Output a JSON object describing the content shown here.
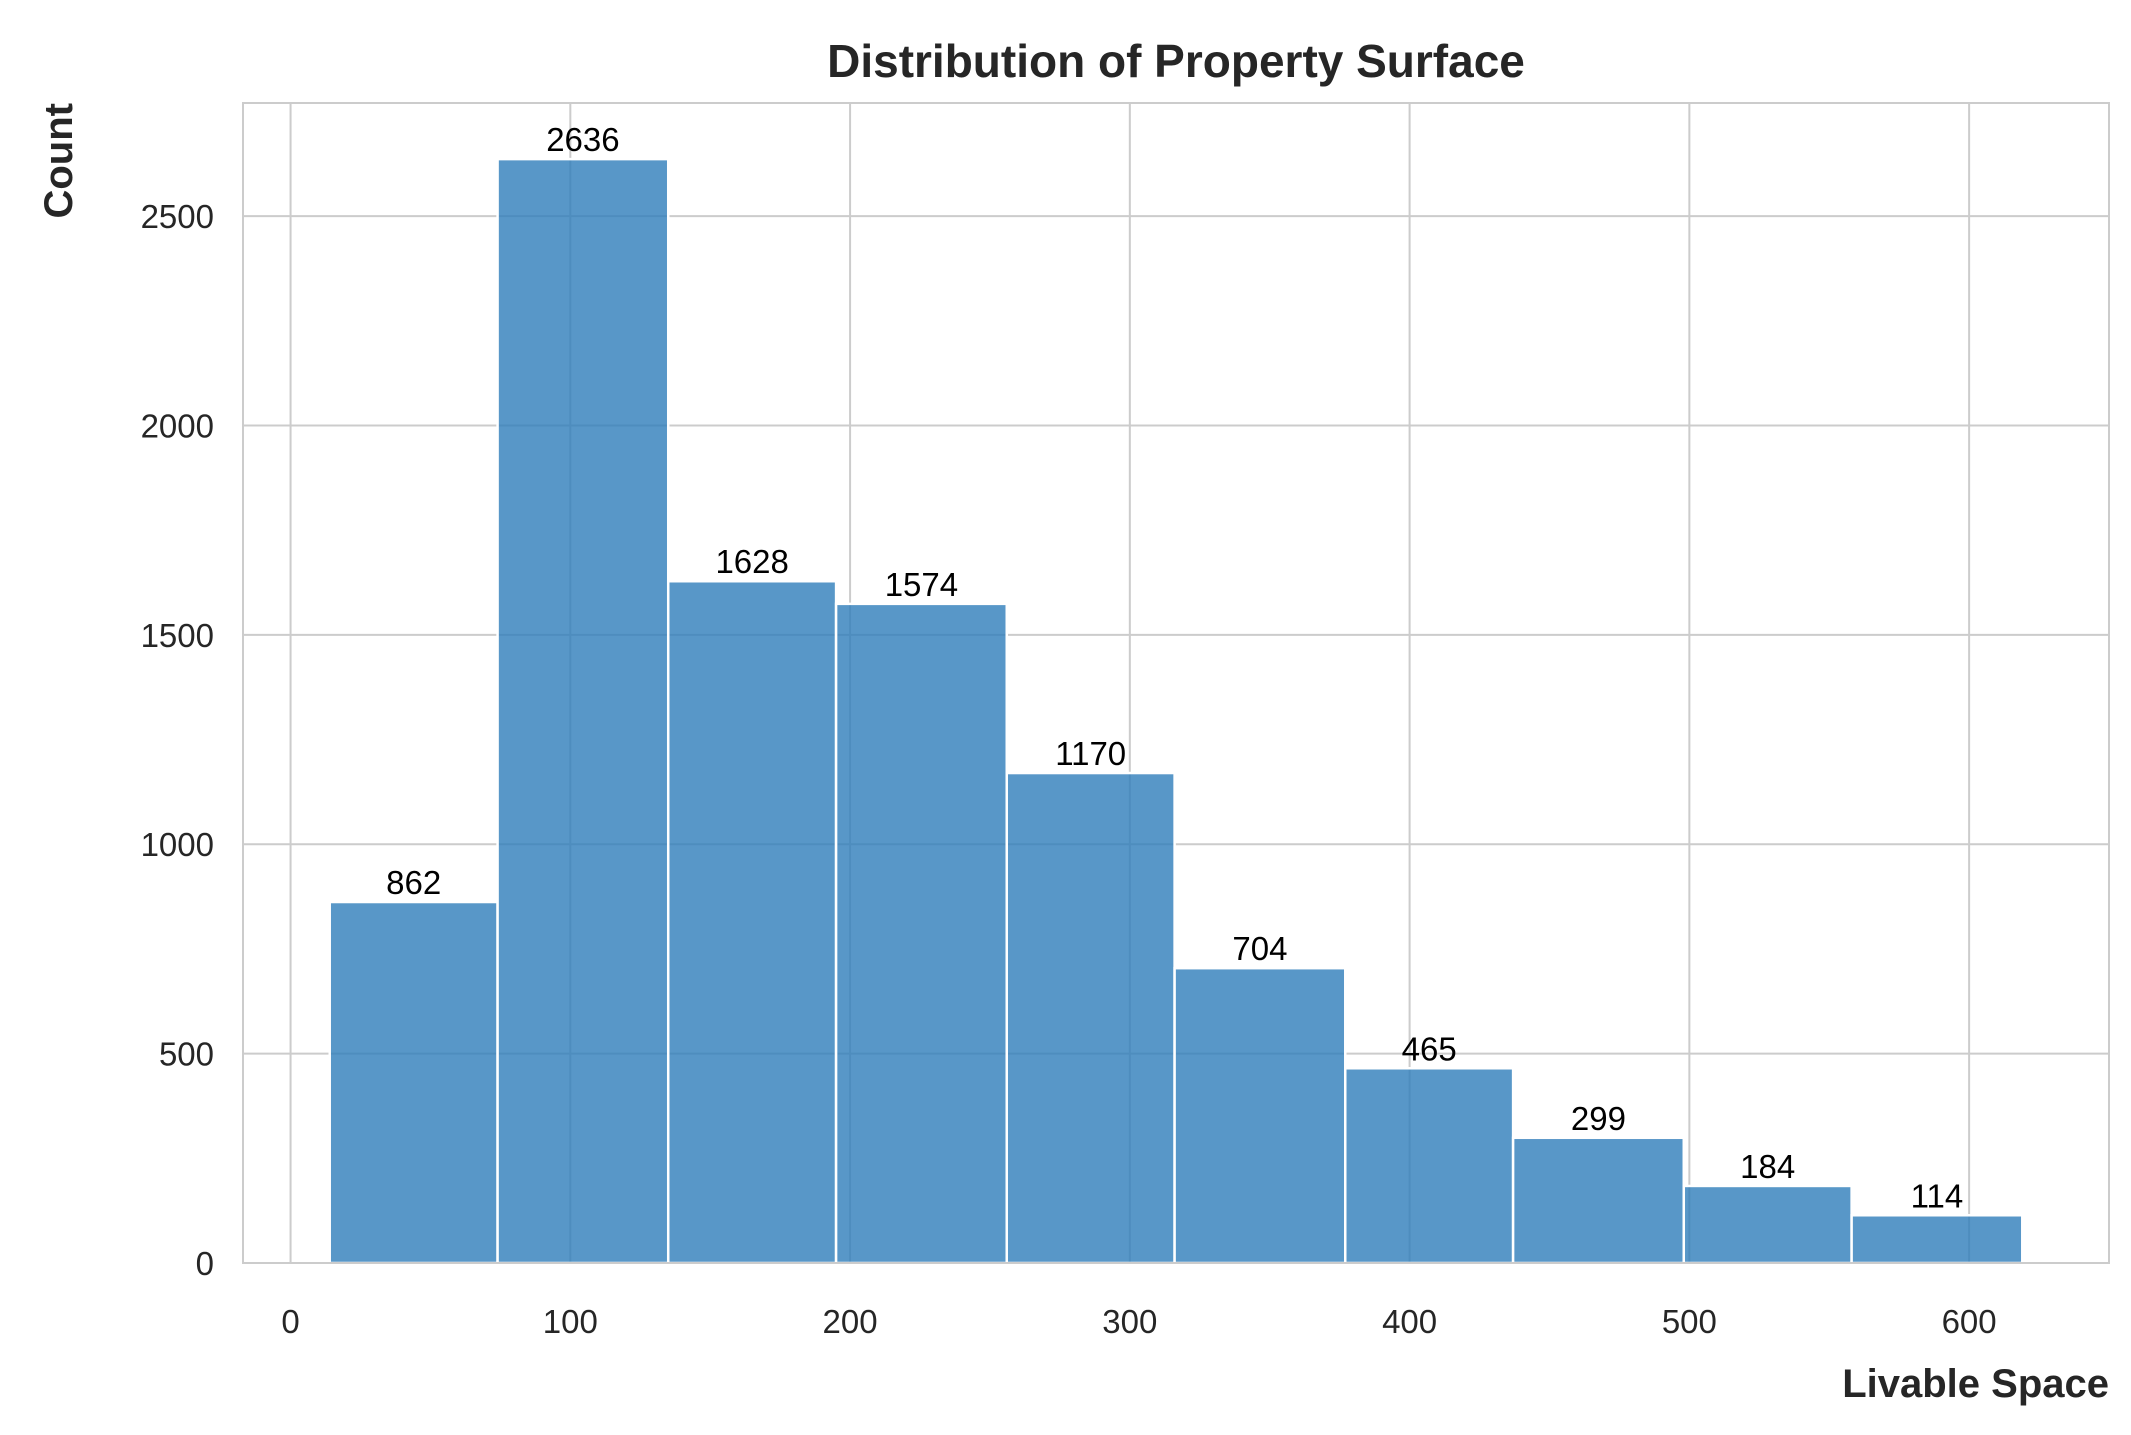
{
  "chart_data": {
    "type": "bar",
    "subtype": "histogram",
    "title": "Distribution of Property Surface",
    "xlabel": "Livable Space",
    "ylabel": "Count",
    "bins": [
      {
        "x0": 14,
        "x1": 74,
        "count": 862
      },
      {
        "x0": 74,
        "x1": 135,
        "count": 2636
      },
      {
        "x0": 135,
        "x1": 195,
        "count": 1628
      },
      {
        "x0": 195,
        "x1": 256,
        "count": 1574
      },
      {
        "x0": 256,
        "x1": 316,
        "count": 1170
      },
      {
        "x0": 316,
        "x1": 377,
        "count": 704
      },
      {
        "x0": 377,
        "x1": 437,
        "count": 465
      },
      {
        "x0": 437,
        "x1": 498,
        "count": 299
      },
      {
        "x0": 498,
        "x1": 558,
        "count": 184
      },
      {
        "x0": 558,
        "x1": 619,
        "count": 114
      }
    ],
    "values": [
      862,
      2636,
      1628,
      1574,
      1170,
      704,
      465,
      299,
      184,
      114
    ],
    "xlim": [
      -17,
      650
    ],
    "ylim": [
      0,
      2770
    ],
    "xticks": [
      "0",
      "100",
      "200",
      "300",
      "400",
      "500",
      "600"
    ],
    "yticks": [
      "0",
      "500",
      "1000",
      "1500",
      "2000",
      "2500"
    ],
    "grid": true,
    "bar_color": "#2e7dba",
    "legend": "none"
  }
}
